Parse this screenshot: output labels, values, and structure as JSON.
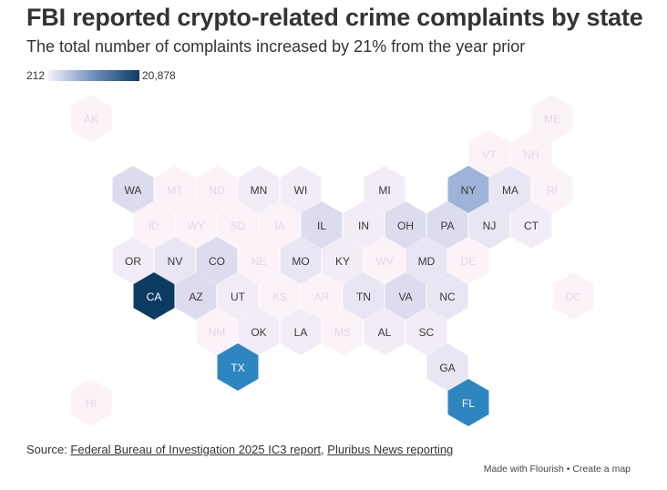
{
  "title": "FBI reported crypto-related crime complaints by state",
  "subtitle": "The total number of complaints increased by 21% from the year prior",
  "legend": {
    "min_label": "212",
    "max_label": "20,878"
  },
  "colors": {
    "light_fill": "#fbf3f8",
    "light_text": "#e6d5e3",
    "tint1_fill": "#f2ecf6",
    "tint2_fill": "#e9e6f3",
    "tint3_fill": "#dcdcee",
    "mid_fill": "#9db4d8",
    "strong_fill": "#2e86c1",
    "darkest_fill": "#0b3b62",
    "label_dark": "#3a3a3a",
    "label_white": "#ffffff"
  },
  "states": [
    {
      "abbr": "AK",
      "col": 0,
      "row": 0,
      "shade": "light"
    },
    {
      "abbr": "ME",
      "col": 11,
      "row": 0,
      "shade": "light"
    },
    {
      "abbr": "VT",
      "col": 9.5,
      "row": 1,
      "shade": "light"
    },
    {
      "abbr": "NH",
      "col": 10.5,
      "row": 1,
      "shade": "light"
    },
    {
      "abbr": "WA",
      "col": 1,
      "row": 2,
      "shade": "tint3"
    },
    {
      "abbr": "MT",
      "col": 2,
      "row": 2,
      "shade": "light"
    },
    {
      "abbr": "ND",
      "col": 3,
      "row": 2,
      "shade": "light"
    },
    {
      "abbr": "MN",
      "col": 4,
      "row": 2,
      "shade": "tint1"
    },
    {
      "abbr": "WI",
      "col": 5,
      "row": 2,
      "shade": "tint1"
    },
    {
      "abbr": "MI",
      "col": 7,
      "row": 2,
      "shade": "tint1"
    },
    {
      "abbr": "NY",
      "col": 9,
      "row": 2,
      "shade": "mid"
    },
    {
      "abbr": "MA",
      "col": 10,
      "row": 2,
      "shade": "tint2"
    },
    {
      "abbr": "RI",
      "col": 11,
      "row": 2,
      "shade": "light"
    },
    {
      "abbr": "ID",
      "col": 1.5,
      "row": 3,
      "shade": "light"
    },
    {
      "abbr": "WY",
      "col": 2.5,
      "row": 3,
      "shade": "light"
    },
    {
      "abbr": "SD",
      "col": 3.5,
      "row": 3,
      "shade": "light"
    },
    {
      "abbr": "IA",
      "col": 4.5,
      "row": 3,
      "shade": "light"
    },
    {
      "abbr": "IL",
      "col": 5.5,
      "row": 3,
      "shade": "tint3"
    },
    {
      "abbr": "IN",
      "col": 6.5,
      "row": 3,
      "shade": "tint1"
    },
    {
      "abbr": "OH",
      "col": 7.5,
      "row": 3,
      "shade": "tint3"
    },
    {
      "abbr": "PA",
      "col": 8.5,
      "row": 3,
      "shade": "tint3"
    },
    {
      "abbr": "NJ",
      "col": 9.5,
      "row": 3,
      "shade": "tint2"
    },
    {
      "abbr": "CT",
      "col": 10.5,
      "row": 3,
      "shade": "tint1"
    },
    {
      "abbr": "OR",
      "col": 1,
      "row": 4,
      "shade": "tint1"
    },
    {
      "abbr": "NV",
      "col": 2,
      "row": 4,
      "shade": "tint2"
    },
    {
      "abbr": "CO",
      "col": 3,
      "row": 4,
      "shade": "tint3"
    },
    {
      "abbr": "NE",
      "col": 4,
      "row": 4,
      "shade": "light"
    },
    {
      "abbr": "MO",
      "col": 5,
      "row": 4,
      "shade": "tint2"
    },
    {
      "abbr": "KY",
      "col": 6,
      "row": 4,
      "shade": "tint1"
    },
    {
      "abbr": "WV",
      "col": 7,
      "row": 4,
      "shade": "light"
    },
    {
      "abbr": "MD",
      "col": 8,
      "row": 4,
      "shade": "tint2"
    },
    {
      "abbr": "DE",
      "col": 9,
      "row": 4,
      "shade": "light"
    },
    {
      "abbr": "CA",
      "col": 1.5,
      "row": 5,
      "shade": "darkest"
    },
    {
      "abbr": "AZ",
      "col": 2.5,
      "row": 5,
      "shade": "tint3"
    },
    {
      "abbr": "UT",
      "col": 3.5,
      "row": 5,
      "shade": "tint1"
    },
    {
      "abbr": "KS",
      "col": 4.5,
      "row": 5,
      "shade": "light"
    },
    {
      "abbr": "AR",
      "col": 5.5,
      "row": 5,
      "shade": "light"
    },
    {
      "abbr": "TN",
      "col": 6.5,
      "row": 5,
      "shade": "tint2"
    },
    {
      "abbr": "VA",
      "col": 7.5,
      "row": 5,
      "shade": "tint3"
    },
    {
      "abbr": "NC",
      "col": 8.5,
      "row": 5,
      "shade": "tint2"
    },
    {
      "abbr": "DC",
      "col": 11.5,
      "row": 5,
      "shade": "light"
    },
    {
      "abbr": "NM",
      "col": 3,
      "row": 6,
      "shade": "light"
    },
    {
      "abbr": "OK",
      "col": 4,
      "row": 6,
      "shade": "tint1"
    },
    {
      "abbr": "LA",
      "col": 5,
      "row": 6,
      "shade": "tint1"
    },
    {
      "abbr": "MS",
      "col": 6,
      "row": 6,
      "shade": "light"
    },
    {
      "abbr": "AL",
      "col": 7,
      "row": 6,
      "shade": "tint1"
    },
    {
      "abbr": "SC",
      "col": 8,
      "row": 6,
      "shade": "tint1"
    },
    {
      "abbr": "TX",
      "col": 3.5,
      "row": 7,
      "shade": "strong"
    },
    {
      "abbr": "GA",
      "col": 8.5,
      "row": 7,
      "shade": "tint2"
    },
    {
      "abbr": "HI",
      "col": 0,
      "row": 8,
      "shade": "light"
    },
    {
      "abbr": "FL",
      "col": 9,
      "row": 8,
      "shade": "strong"
    }
  ],
  "source": {
    "prefix": "Source: ",
    "link1": "Federal Bureau of Investigation 2025 IC3 report",
    "separator": ", ",
    "link2": "Pluribus News reporting"
  },
  "footer": "Made with Flourish • Create a map"
}
